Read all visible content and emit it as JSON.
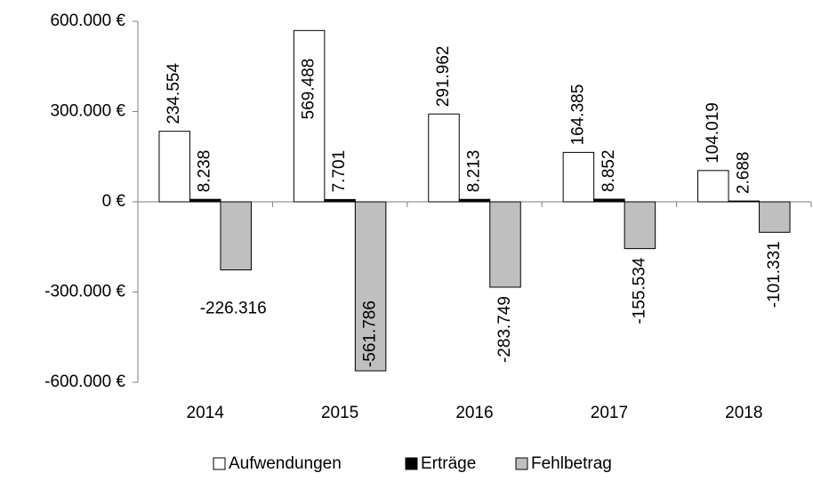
{
  "chart_data": {
    "type": "bar",
    "categories": [
      "2014",
      "2015",
      "2016",
      "2017",
      "2018"
    ],
    "series": [
      {
        "name": "Aufwendungen",
        "color": "#ffffff",
        "values": [
          234554,
          569488,
          291962,
          164385,
          104019
        ],
        "value_labels": [
          "234.554",
          "569.488",
          "291.962",
          "164.385",
          "104.019"
        ]
      },
      {
        "name": "Erträge",
        "color": "#000000",
        "values": [
          8238,
          7701,
          8213,
          8852,
          2688
        ],
        "value_labels": [
          "8.238",
          "7.701",
          "8.213",
          "8.852",
          "2.688"
        ]
      },
      {
        "name": "Fehlbetrag",
        "color": "#bfbfbf",
        "values": [
          -226316,
          -561786,
          -283749,
          -155534,
          -101331
        ],
        "value_labels": [
          "-226.316",
          "-561.786",
          "-283.749",
          "-155.534",
          "-101.331"
        ]
      }
    ],
    "ylim": [
      -600000,
      600000
    ],
    "yticks": [
      {
        "value": 600000,
        "label": "600.000 €"
      },
      {
        "value": 300000,
        "label": "300.000 €"
      },
      {
        "value": 0,
        "label": "0 €"
      },
      {
        "value": -300000,
        "label": "-300.000 €"
      },
      {
        "value": -600000,
        "label": "-600.000 €"
      }
    ],
    "legend": "bottom",
    "grid": false
  }
}
